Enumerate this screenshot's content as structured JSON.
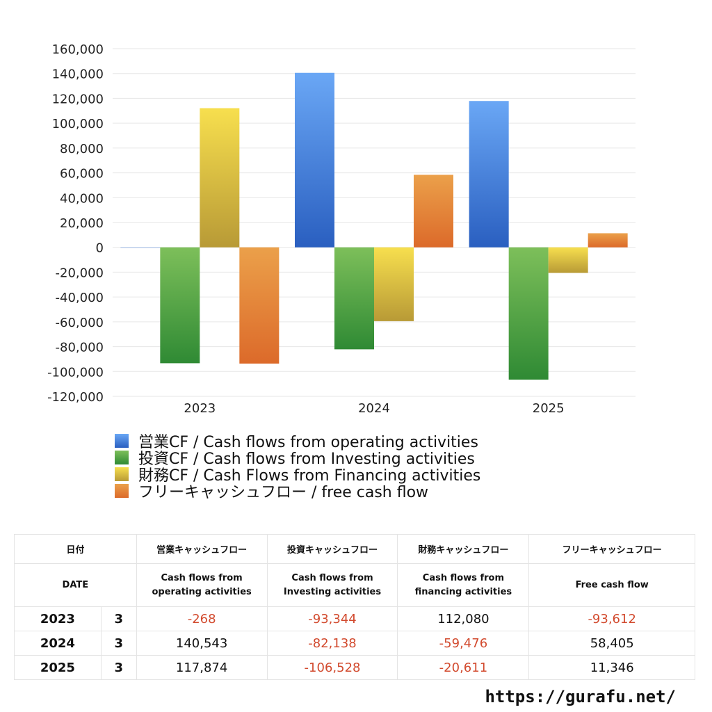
{
  "chart_data": {
    "type": "bar",
    "categories": [
      "2023",
      "2024",
      "2025"
    ],
    "series": [
      {
        "name": "営業CF / Cash flows from operating activities",
        "values": [
          -268,
          140543,
          117874
        ],
        "color_top": "#6aa7f5",
        "color_bottom": "#2a5fc0"
      },
      {
        "name": "投資CF / Cash flows from Investing activities",
        "values": [
          -93344,
          -82138,
          -106528
        ],
        "color_top": "#7dbf5a",
        "color_bottom": "#2f8a34"
      },
      {
        "name": "財務CF / Cash Flows from Financing activities",
        "values": [
          112080,
          -59476,
          -20611
        ],
        "color_top": "#f7df4e",
        "color_bottom": "#b89a36"
      },
      {
        "name": "フリーキャッシュフロー / free cash flow",
        "values": [
          -93612,
          58405,
          11346
        ],
        "color_top": "#eba04a",
        "color_bottom": "#dc6a2a"
      }
    ],
    "ylim": [
      -120000,
      160000
    ],
    "yticks": [
      160000,
      140000,
      120000,
      100000,
      80000,
      60000,
      40000,
      20000,
      0,
      -20000,
      -40000,
      -60000,
      -80000,
      -100000,
      -120000
    ],
    "ytick_labels": [
      "160,000",
      "140,000",
      "120,000",
      "100,000",
      "80,000",
      "60,000",
      "40,000",
      "20,000",
      "0",
      "-20,000",
      "-40,000",
      "-60,000",
      "-80,000",
      "-100,000",
      "-120,000"
    ],
    "grid": true,
    "legend": "bottom"
  },
  "table": {
    "headers_jp": [
      "日付",
      "営業キャッシュフロー",
      "投資キャッシュフロー",
      "財務キャッシュフロー",
      "フリーキャッシュフロー"
    ],
    "headers_en": [
      "DATE",
      "Cash flows from operating activities",
      "Cash flows from Investing activities",
      "Cash flows from financing activities",
      "Free cash flow"
    ],
    "rows": [
      {
        "year": "2023",
        "month": "3",
        "values": [
          "-268",
          "-93,344",
          "112,080",
          "-93,612"
        ]
      },
      {
        "year": "2024",
        "month": "3",
        "values": [
          "140,543",
          "-82,138",
          "-59,476",
          "58,405"
        ]
      },
      {
        "year": "2025",
        "month": "3",
        "values": [
          "117,874",
          "-106,528",
          "-20,611",
          "11,346"
        ]
      }
    ]
  },
  "footer": {
    "url": "https://gurafu.net/"
  }
}
